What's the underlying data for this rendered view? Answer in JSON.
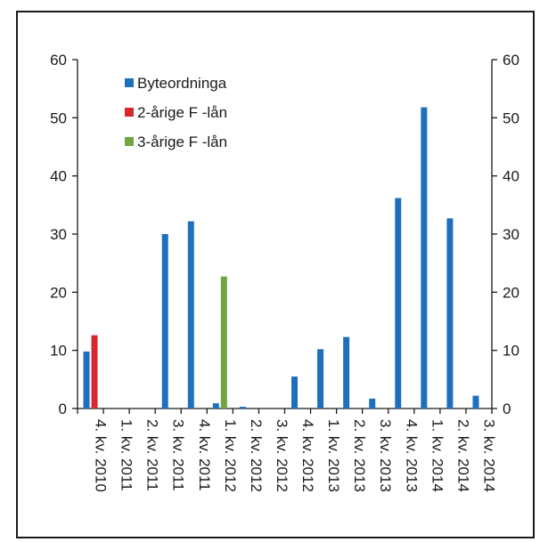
{
  "chart_data": {
    "type": "bar",
    "categories": [
      "4. kv. 2010",
      "1. kv. 2011",
      "2. kv. 2011",
      "3. kv. 2011",
      "4. kv. 2011",
      "1. kv. 2012",
      "2. kv. 2012",
      "3. kv. 2012",
      "4. kv. 2012",
      "1. kv. 2013",
      "2. kv. 2013",
      "3. kv. 2013",
      "4. kv. 2013",
      "1. kv. 2014",
      "2. kv. 2014",
      "3. kv. 2014"
    ],
    "series": [
      {
        "name": "Byteordninga",
        "color": "#1f6fbf",
        "values": [
          9.8,
          0,
          0,
          30,
          32.2,
          0.9,
          0.3,
          0,
          5.5,
          10.2,
          12.3,
          1.7,
          36.2,
          51.8,
          32.7,
          2.2
        ]
      },
      {
        "name": "2-årige F -lån",
        "color": "#d6282e",
        "values": [
          12.6,
          0,
          0,
          0,
          0,
          0,
          0,
          0,
          0,
          0,
          0,
          0,
          0,
          0,
          0,
          0
        ]
      },
      {
        "name": "3-årige F -lån",
        "color": "#72a542",
        "values": [
          0,
          0,
          0,
          0,
          0,
          22.7,
          0,
          0,
          0,
          0,
          0,
          0,
          0,
          0,
          0,
          0
        ]
      }
    ],
    "yticks": [
      0,
      10,
      20,
      30,
      40,
      50,
      60
    ],
    "ylim": [
      0,
      60
    ],
    "grid": false,
    "legend_position": "top-left",
    "title": "",
    "xlabel": "",
    "ylabel": ""
  }
}
